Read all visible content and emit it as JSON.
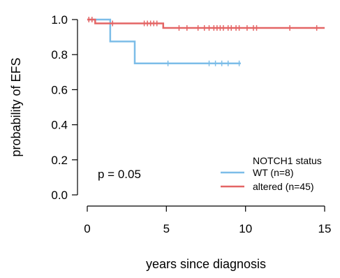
{
  "chart_data": {
    "type": "line",
    "subtype": "kaplan-meier",
    "xlabel": "years since diagnosis",
    "ylabel": "probability of EFS",
    "xlim": [
      0,
      15
    ],
    "ylim": [
      0,
      1
    ],
    "x_ticks": [
      "0",
      "5",
      "10",
      "15"
    ],
    "y_ticks": [
      "0.0",
      "0.2",
      "0.4",
      "0.6",
      "0.8",
      "1.0"
    ],
    "x_tick_values": [
      0,
      5,
      10,
      15
    ],
    "y_tick_values": [
      0,
      0.2,
      0.4,
      0.6,
      0.8,
      1.0
    ],
    "grid": false,
    "legend": {
      "title": "NOTCH1 status",
      "placement": "bottom-right"
    },
    "annotation": "p = 0.05",
    "series": [
      {
        "name": "WT (n=8)",
        "color": "#7cbde8",
        "steps": [
          {
            "x": 0,
            "y": 1.0
          },
          {
            "x": 1.45,
            "y": 0.875
          },
          {
            "x": 3.0,
            "y": 0.75
          }
        ],
        "end_x": 9.7,
        "censor": [
          {
            "x": 5.1,
            "y": 0.75
          },
          {
            "x": 7.7,
            "y": 0.75
          },
          {
            "x": 8.1,
            "y": 0.75
          },
          {
            "x": 8.5,
            "y": 0.75
          },
          {
            "x": 8.9,
            "y": 0.75
          },
          {
            "x": 9.6,
            "y": 0.75
          }
        ]
      },
      {
        "name": "altered (n=45)",
        "color": "#e46565",
        "steps": [
          {
            "x": 0,
            "y": 1.0
          },
          {
            "x": 0.5,
            "y": 0.978
          },
          {
            "x": 4.8,
            "y": 0.952
          }
        ],
        "end_x": 15.0,
        "censor": [
          {
            "x": 0.1,
            "y": 1.0
          },
          {
            "x": 0.3,
            "y": 1.0
          },
          {
            "x": 1.6,
            "y": 0.978
          },
          {
            "x": 3.6,
            "y": 0.978
          },
          {
            "x": 3.8,
            "y": 0.978
          },
          {
            "x": 4.0,
            "y": 0.978
          },
          {
            "x": 4.2,
            "y": 0.978
          },
          {
            "x": 4.4,
            "y": 0.978
          },
          {
            "x": 5.8,
            "y": 0.952
          },
          {
            "x": 6.3,
            "y": 0.952
          },
          {
            "x": 7.0,
            "y": 0.952
          },
          {
            "x": 7.4,
            "y": 0.952
          },
          {
            "x": 7.7,
            "y": 0.952
          },
          {
            "x": 8.0,
            "y": 0.952
          },
          {
            "x": 8.2,
            "y": 0.952
          },
          {
            "x": 8.4,
            "y": 0.952
          },
          {
            "x": 8.6,
            "y": 0.952
          },
          {
            "x": 8.9,
            "y": 0.952
          },
          {
            "x": 9.1,
            "y": 0.952
          },
          {
            "x": 9.4,
            "y": 0.952
          },
          {
            "x": 9.6,
            "y": 0.952
          },
          {
            "x": 10.1,
            "y": 0.952
          },
          {
            "x": 10.5,
            "y": 0.952
          },
          {
            "x": 10.7,
            "y": 0.952
          },
          {
            "x": 12.8,
            "y": 0.952
          },
          {
            "x": 14.5,
            "y": 0.952
          }
        ]
      }
    ]
  }
}
